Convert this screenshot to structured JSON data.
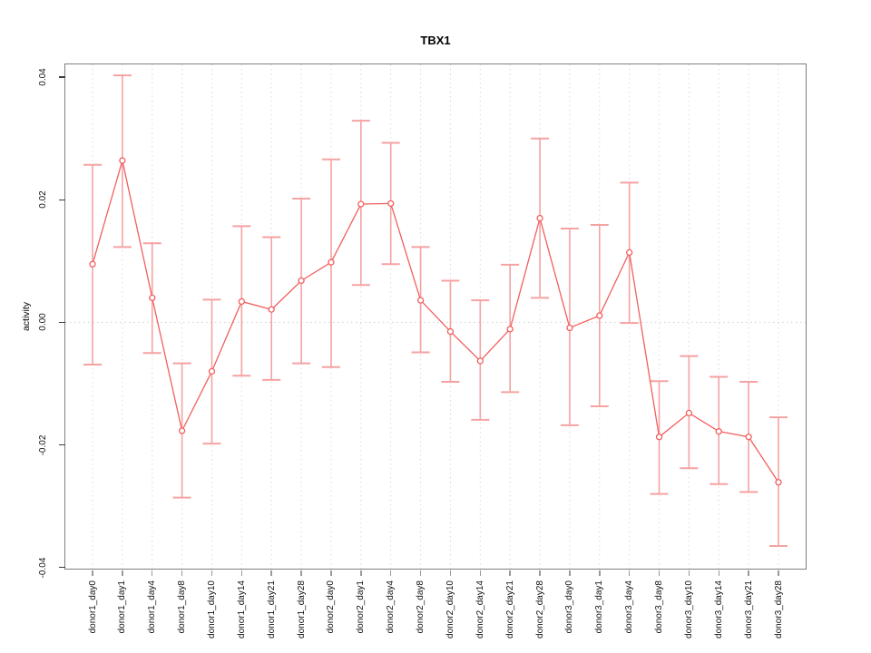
{
  "figure": {
    "background": "#ffffff"
  },
  "chart_data": {
    "type": "line",
    "title": "TBX1",
    "xlabel": "",
    "ylabel": "activity",
    "legend": "none",
    "error_bars": true,
    "categories": [
      "donor1_day0",
      "donor1_day1",
      "donor1_day4",
      "donor1_day8",
      "donor1_day10",
      "donor1_day14",
      "donor1_day21",
      "donor1_day28",
      "donor2_day0",
      "donor2_day1",
      "donor2_day4",
      "donor2_day8",
      "donor2_day10",
      "donor2_day14",
      "donor2_day21",
      "donor2_day28",
      "donor3_day0",
      "donor3_day1",
      "donor3_day4",
      "donor3_day8",
      "donor3_day10",
      "donor3_day14",
      "donor3_day21",
      "donor3_day28"
    ],
    "series": [
      {
        "name": "activity",
        "values": [
          0.0095,
          0.0264,
          0.004,
          -0.0177,
          -0.008,
          0.0034,
          0.0021,
          0.0068,
          0.0098,
          0.0193,
          0.0194,
          0.0036,
          -0.0015,
          -0.0063,
          -0.0011,
          0.017,
          -0.0009,
          0.0011,
          0.0114,
          -0.0187,
          -0.0148,
          -0.0178,
          -0.0187,
          -0.0261
        ],
        "error_low": [
          -0.0069,
          0.0123,
          -0.005,
          -0.0286,
          -0.0198,
          -0.0087,
          -0.0094,
          -0.0067,
          -0.0073,
          0.0061,
          0.0095,
          -0.0049,
          -0.0097,
          -0.0159,
          -0.0114,
          0.004,
          -0.0168,
          -0.0137,
          -0.0001,
          -0.028,
          -0.0238,
          -0.0264,
          -0.0277,
          -0.0365
        ],
        "error_high": [
          0.0257,
          0.0403,
          0.0129,
          -0.0067,
          0.0037,
          0.0157,
          0.0139,
          0.0202,
          0.0266,
          0.0329,
          0.0293,
          0.0123,
          0.0068,
          0.0036,
          0.0094,
          0.03,
          0.0153,
          0.0159,
          0.0228,
          -0.0096,
          -0.0055,
          -0.0089,
          -0.0097,
          -0.0155
        ]
      }
    ],
    "yticks": {
      "values": [
        0.04,
        0.02,
        0,
        -0.02,
        -0.04
      ],
      "labels": [
        "0.04",
        "0.02",
        "0.00",
        "-0.02",
        "-0.04"
      ]
    },
    "ylim": [
      -0.0402,
      0.0421
    ],
    "grid": {
      "vertical_dotted_per_category": true,
      "horizontal_dotted_zero_line": true
    },
    "colors": {
      "line": "#f15f5f",
      "point_fill": "#ffffff",
      "error_bar": "#f5a2a2",
      "gridline": "#dbdbdb",
      "zero_line": "#cfcfcf",
      "frame": "#7e7e7e",
      "y_tick": "#3d3d3d",
      "x_tick": "#9a9a9a",
      "text": "#000000"
    }
  }
}
